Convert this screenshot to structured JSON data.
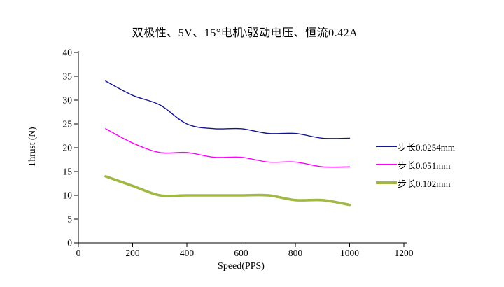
{
  "title": "双极性、5V、15°电机\\驱动电压、恒流0.42A",
  "chart_data": {
    "type": "line",
    "smooth": true,
    "grid": false,
    "title": "双极性、5V、15°电机\\驱动电压、恒流0.42A",
    "xlabel": "Speed(PPS)",
    "ylabel": "Thrust (N)",
    "xlim": [
      0,
      1200
    ],
    "ylim": [
      0,
      40
    ],
    "xticks": [
      0,
      200,
      400,
      600,
      800,
      1000,
      1200
    ],
    "yticks": [
      0,
      5,
      10,
      15,
      20,
      25,
      30,
      35,
      40
    ],
    "x": [
      100,
      200,
      300,
      400,
      500,
      600,
      700,
      800,
      900,
      1000
    ],
    "series": [
      {
        "name": "步长0.0254mm",
        "color": "#14148C",
        "width": 1.4,
        "values": [
          34,
          31,
          29,
          25,
          24,
          24,
          23,
          23,
          22,
          22
        ]
      },
      {
        "name": "步长0.051mm",
        "color": "#FF00FF",
        "width": 1.4,
        "values": [
          24,
          21,
          19,
          19,
          18,
          18,
          17,
          17,
          16,
          16
        ]
      },
      {
        "name": "步长0.102mm",
        "color": "#A2B845",
        "width": 3.6,
        "values": [
          14,
          12,
          10,
          10,
          10,
          10,
          10,
          9,
          9,
          8
        ]
      }
    ],
    "legend_position": "right",
    "axis_color": "#000000"
  }
}
